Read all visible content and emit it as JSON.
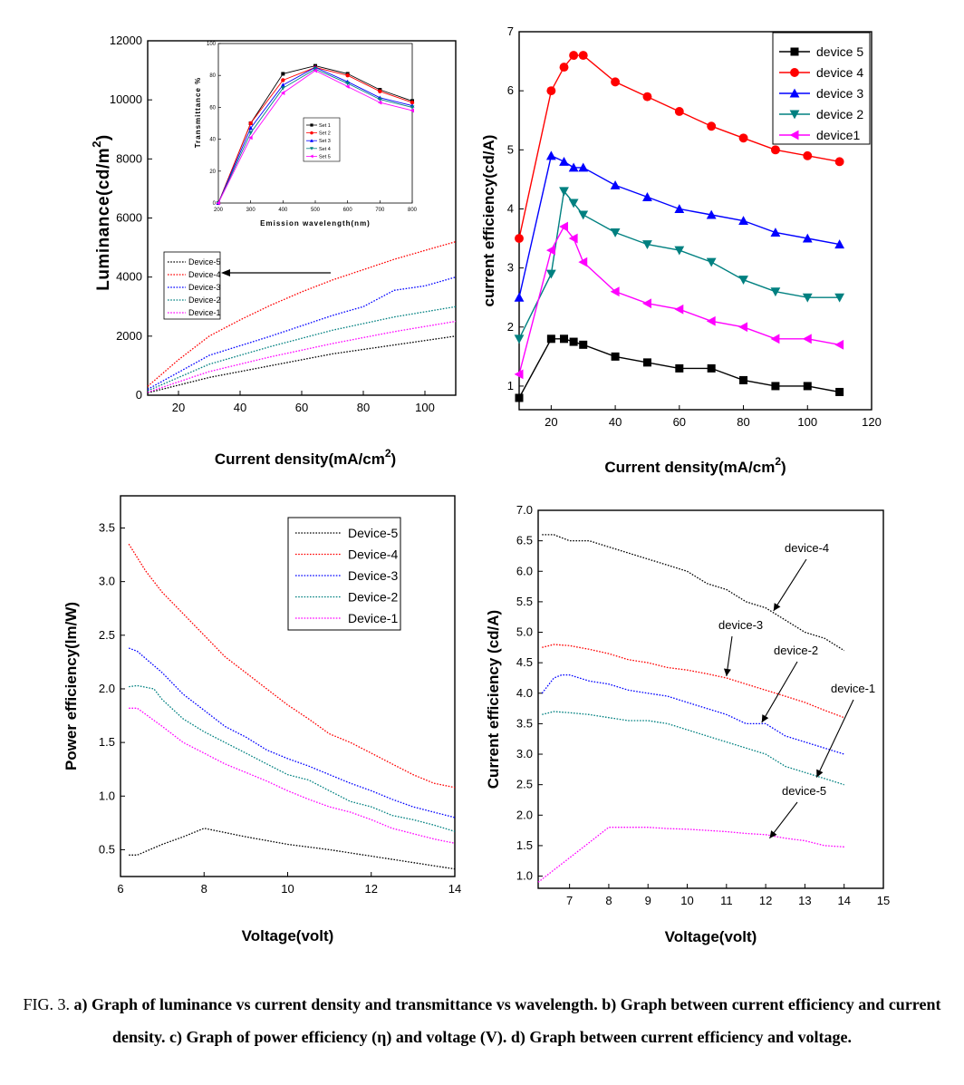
{
  "caption": {
    "prefix": "FIG. 3.",
    "text": "a) Graph of luminance vs current density and transmittance vs wavelength. b) Graph between current efficiency and current density. c) Graph of power efficiency (η) and voltage (V). d) Graph between current efficiency and voltage."
  },
  "colors": {
    "device5": "#000000",
    "device4": "#ff0000",
    "device3": "#0000ff",
    "device2": "#008080",
    "device1": "#ff00ff"
  },
  "chart_data": [
    {
      "id": "a",
      "type": "line",
      "xlabel": "Current density(mA/cm2)",
      "ylabel": "Luminance(cd/m2)",
      "xlim": [
        10,
        110
      ],
      "ylim": [
        0,
        12000
      ],
      "xticks": [
        20,
        40,
        60,
        80,
        100
      ],
      "yticks": [
        0,
        2000,
        4000,
        6000,
        8000,
        10000,
        12000
      ],
      "line_style": "dotted",
      "legend_position": "middle-left",
      "series": [
        {
          "name": "Device-5",
          "color": "#000000",
          "x": [
            10,
            30,
            50,
            70,
            90,
            110
          ],
          "y": [
            80,
            600,
            1000,
            1400,
            1700,
            2000
          ]
        },
        {
          "name": "Device-4",
          "color": "#ff0000",
          "x": [
            10,
            20,
            30,
            40,
            50,
            60,
            70,
            80,
            90,
            100,
            110
          ],
          "y": [
            300,
            1200,
            2000,
            2550,
            3050,
            3500,
            3900,
            4250,
            4600,
            4900,
            5200
          ]
        },
        {
          "name": "Device-3",
          "color": "#0000ff",
          "x": [
            10,
            30,
            50,
            70,
            80,
            90,
            100,
            110
          ],
          "y": [
            200,
            1350,
            2000,
            2700,
            3000,
            3550,
            3700,
            4000
          ]
        },
        {
          "name": "Device-2",
          "color": "#008080",
          "x": [
            10,
            30,
            50,
            70,
            90,
            110
          ],
          "y": [
            150,
            1050,
            1650,
            2200,
            2650,
            3000
          ]
        },
        {
          "name": "Device-1",
          "color": "#ff00ff",
          "x": [
            10,
            30,
            50,
            70,
            90,
            110
          ],
          "y": [
            100,
            800,
            1300,
            1750,
            2150,
            2500
          ]
        }
      ],
      "annotation": "arrow from legend entry Device-4",
      "inset": {
        "type": "line",
        "xlabel": "Emission wavelength(nm)",
        "ylabel": "Transmittance %",
        "xlim": [
          200,
          800
        ],
        "ylim": [
          0,
          100
        ],
        "xticks": [
          200,
          300,
          400,
          500,
          600,
          700,
          800
        ],
        "yticks": [
          0,
          20,
          40,
          60,
          80,
          100
        ],
        "legend_position": "center-right",
        "series": [
          {
            "name": "Set 1",
            "color": "#000000",
            "marker": "square",
            "x": [
              200,
              300,
              400,
              500,
              600,
              700,
              800
            ],
            "y": [
              0,
              50,
              81,
              86,
              81,
              71,
              64
            ]
          },
          {
            "name": "Set 2",
            "color": "#ff0000",
            "marker": "circle",
            "x": [
              200,
              300,
              400,
              500,
              600,
              700,
              800
            ],
            "y": [
              0,
              50,
              77,
              85,
              80,
              70,
              63
            ]
          },
          {
            "name": "Set 3",
            "color": "#0000ff",
            "marker": "triangle-up",
            "x": [
              200,
              300,
              400,
              500,
              600,
              700,
              800
            ],
            "y": [
              0,
              47,
              74,
              85,
              76,
              66,
              61
            ]
          },
          {
            "name": "Set 4",
            "color": "#008080",
            "marker": "triangle-down",
            "x": [
              200,
              300,
              400,
              500,
              600,
              700,
              800
            ],
            "y": [
              0,
              44,
              72,
              84,
              75,
              65,
              60
            ]
          },
          {
            "name": "Set 5",
            "color": "#ff00ff",
            "marker": "triangle-left",
            "x": [
              200,
              300,
              400,
              500,
              600,
              700,
              800
            ],
            "y": [
              0,
              41,
              69,
              83,
              73,
              63,
              58
            ]
          }
        ]
      }
    },
    {
      "id": "b",
      "type": "line",
      "xlabel": "Current density(mA/cm2)",
      "ylabel": "current efficiency(cd/A)",
      "xlim": [
        10,
        120
      ],
      "ylim": [
        0.6,
        7
      ],
      "xticks": [
        20,
        40,
        60,
        80,
        100,
        120
      ],
      "yticks": [
        1,
        2,
        3,
        4,
        5,
        6,
        7
      ],
      "legend_position": "top-right",
      "series": [
        {
          "name": "device 5",
          "color": "#000000",
          "marker": "square",
          "x": [
            10,
            20,
            24,
            27,
            30,
            40,
            50,
            60,
            70,
            80,
            90,
            100,
            110
          ],
          "y": [
            0.8,
            1.8,
            1.8,
            1.75,
            1.7,
            1.5,
            1.4,
            1.3,
            1.3,
            1.1,
            1.0,
            1.0,
            0.9
          ]
        },
        {
          "name": "device 4",
          "color": "#ff0000",
          "marker": "circle",
          "x": [
            10,
            20,
            24,
            27,
            30,
            40,
            50,
            60,
            70,
            80,
            90,
            100,
            110
          ],
          "y": [
            3.5,
            6.0,
            6.4,
            6.6,
            6.6,
            6.15,
            5.9,
            5.65,
            5.4,
            5.2,
            5.0,
            4.9,
            4.8
          ]
        },
        {
          "name": "device 3",
          "color": "#0000ff",
          "marker": "triangle-up",
          "x": [
            10,
            20,
            24,
            27,
            30,
            40,
            50,
            60,
            70,
            80,
            90,
            100,
            110
          ],
          "y": [
            2.5,
            4.9,
            4.8,
            4.7,
            4.7,
            4.4,
            4.2,
            4.0,
            3.9,
            3.8,
            3.6,
            3.5,
            3.4
          ]
        },
        {
          "name": "device 2",
          "color": "#008080",
          "marker": "triangle-down",
          "x": [
            10,
            20,
            24,
            27,
            30,
            40,
            50,
            60,
            70,
            80,
            90,
            100,
            110
          ],
          "y": [
            1.8,
            2.9,
            4.3,
            4.1,
            3.9,
            3.6,
            3.4,
            3.3,
            3.1,
            2.8,
            2.6,
            2.5,
            2.5
          ]
        },
        {
          "name": "device1",
          "color": "#ff00ff",
          "marker": "triangle-left",
          "x": [
            10,
            20,
            24,
            27,
            30,
            40,
            50,
            60,
            70,
            80,
            90,
            100,
            110
          ],
          "y": [
            1.2,
            3.3,
            3.7,
            3.5,
            3.1,
            2.6,
            2.4,
            2.3,
            2.1,
            2.0,
            1.8,
            1.8,
            1.7
          ]
        }
      ]
    },
    {
      "id": "c",
      "type": "line",
      "xlabel": "Voltage(volt)",
      "ylabel": "Power efficiency(lm/W)",
      "xlim": [
        6,
        14
      ],
      "ylim": [
        0.25,
        3.8
      ],
      "xticks": [
        6,
        8,
        10,
        12,
        14
      ],
      "yticks": [
        0.5,
        1.0,
        1.5,
        2.0,
        2.5,
        3.0,
        3.5
      ],
      "line_style": "dotted",
      "legend_position": "top-right",
      "series": [
        {
          "name": "Device-5",
          "color": "#000000",
          "x": [
            6.2,
            6.4,
            7,
            7.5,
            8,
            9,
            10,
            11,
            12,
            13,
            14
          ],
          "y": [
            0.45,
            0.45,
            0.55,
            0.62,
            0.7,
            0.62,
            0.55,
            0.5,
            0.44,
            0.38,
            0.32
          ]
        },
        {
          "name": "Device-4",
          "color": "#ff0000",
          "x": [
            6.2,
            6.6,
            7,
            7.5,
            8,
            8.5,
            9,
            9.5,
            10,
            10.5,
            11,
            11.5,
            12,
            12.5,
            13,
            13.5,
            14
          ],
          "y": [
            3.35,
            3.1,
            2.9,
            2.7,
            2.5,
            2.3,
            2.15,
            2.0,
            1.85,
            1.72,
            1.58,
            1.5,
            1.4,
            1.3,
            1.2,
            1.12,
            1.08
          ]
        },
        {
          "name": "Device-3",
          "color": "#0000ff",
          "x": [
            6.2,
            6.4,
            7,
            7.5,
            8,
            8.5,
            9,
            9.5,
            10,
            10.5,
            11,
            11.5,
            12,
            12.5,
            13,
            13.5,
            14
          ],
          "y": [
            2.38,
            2.35,
            2.15,
            1.95,
            1.8,
            1.65,
            1.55,
            1.43,
            1.35,
            1.28,
            1.2,
            1.12,
            1.05,
            0.97,
            0.9,
            0.85,
            0.8
          ]
        },
        {
          "name": "Device-2",
          "color": "#008080",
          "x": [
            6.2,
            6.4,
            6.8,
            7,
            7.5,
            8,
            8.5,
            9,
            9.5,
            10,
            10.5,
            11,
            11.5,
            12,
            12.5,
            13,
            13.5,
            14
          ],
          "y": [
            2.02,
            2.03,
            2.0,
            1.9,
            1.72,
            1.6,
            1.5,
            1.4,
            1.3,
            1.2,
            1.15,
            1.05,
            0.95,
            0.9,
            0.82,
            0.78,
            0.73,
            0.67
          ]
        },
        {
          "name": "Device-1",
          "color": "#ff00ff",
          "x": [
            6.2,
            6.4,
            7,
            7.5,
            8,
            8.5,
            9,
            9.5,
            10,
            10.5,
            11,
            11.5,
            12,
            12.5,
            13,
            13.5,
            14
          ],
          "y": [
            1.82,
            1.82,
            1.65,
            1.5,
            1.4,
            1.3,
            1.22,
            1.14,
            1.05,
            0.97,
            0.9,
            0.85,
            0.78,
            0.7,
            0.65,
            0.6,
            0.56
          ]
        }
      ]
    },
    {
      "id": "d",
      "type": "line",
      "xlabel": "Voltage(volt)",
      "ylabel": "Current efficiency (cd/A)",
      "xlim": [
        6.2,
        15
      ],
      "ylim": [
        0.8,
        7.0
      ],
      "xticks": [
        7,
        8,
        9,
        10,
        11,
        12,
        13,
        14,
        15
      ],
      "yticks": [
        1.0,
        1.5,
        2.0,
        2.5,
        3.0,
        3.5,
        4.0,
        4.5,
        5.0,
        5.5,
        6.0,
        6.5,
        7.0
      ],
      "line_style": "dotted",
      "legend_position": "none",
      "series": [
        {
          "name": "device-4",
          "color": "#000000",
          "x": [
            6.3,
            6.6,
            7,
            7.5,
            8,
            8.5,
            9,
            9.5,
            10,
            10.5,
            11,
            11.5,
            12,
            12.5,
            13,
            13.5,
            14
          ],
          "y": [
            6.6,
            6.6,
            6.5,
            6.5,
            6.4,
            6.3,
            6.2,
            6.1,
            6.0,
            5.8,
            5.7,
            5.5,
            5.4,
            5.2,
            5.0,
            4.9,
            4.7
          ]
        },
        {
          "name": "device-3",
          "color": "#ff0000",
          "x": [
            6.3,
            6.6,
            7,
            7.5,
            8,
            8.5,
            9,
            9.5,
            10,
            10.5,
            11,
            11.5,
            12,
            12.5,
            13,
            13.5,
            14
          ],
          "y": [
            4.75,
            4.8,
            4.78,
            4.72,
            4.65,
            4.55,
            4.5,
            4.42,
            4.38,
            4.32,
            4.25,
            4.15,
            4.05,
            3.95,
            3.85,
            3.72,
            3.6
          ]
        },
        {
          "name": "device-2",
          "color": "#0000ff",
          "x": [
            6.3,
            6.6,
            6.8,
            7,
            7.5,
            8,
            8.5,
            9,
            9.5,
            10,
            10.5,
            11,
            11.5,
            12,
            12.5,
            13,
            13.5,
            14
          ],
          "y": [
            4.0,
            4.25,
            4.3,
            4.3,
            4.2,
            4.15,
            4.05,
            4.0,
            3.95,
            3.85,
            3.75,
            3.65,
            3.5,
            3.5,
            3.3,
            3.2,
            3.1,
            3.0
          ]
        },
        {
          "name": "device-1",
          "color": "#008080",
          "x": [
            6.3,
            6.6,
            7,
            7.5,
            8,
            8.5,
            9,
            9.5,
            10,
            10.5,
            11,
            11.5,
            12,
            12.5,
            13,
            13.5,
            14
          ],
          "y": [
            3.65,
            3.7,
            3.68,
            3.65,
            3.6,
            3.55,
            3.55,
            3.5,
            3.4,
            3.3,
            3.2,
            3.1,
            3.0,
            2.8,
            2.7,
            2.6,
            2.5
          ]
        },
        {
          "name": "device-5",
          "color": "#ff00ff",
          "x": [
            6.2,
            6.6,
            7,
            7.5,
            8,
            8.5,
            9,
            9.5,
            10,
            10.5,
            11,
            11.5,
            12,
            12.5,
            13,
            13.5,
            14
          ],
          "y": [
            0.9,
            1.1,
            1.3,
            1.55,
            1.8,
            1.8,
            1.8,
            1.78,
            1.77,
            1.75,
            1.73,
            1.7,
            1.68,
            1.62,
            1.58,
            1.5,
            1.48
          ]
        }
      ],
      "annotations": [
        {
          "text": "device-4",
          "target_x": 12.2,
          "target_y": 5.35
        },
        {
          "text": "device-3",
          "target_x": 11,
          "target_y": 4.28
        },
        {
          "text": "device-2",
          "target_x": 11.9,
          "target_y": 3.52
        },
        {
          "text": "device-1",
          "target_x": 13.3,
          "target_y": 2.62
        },
        {
          "text": "device-5",
          "target_x": 12.1,
          "target_y": 1.62
        }
      ]
    }
  ]
}
